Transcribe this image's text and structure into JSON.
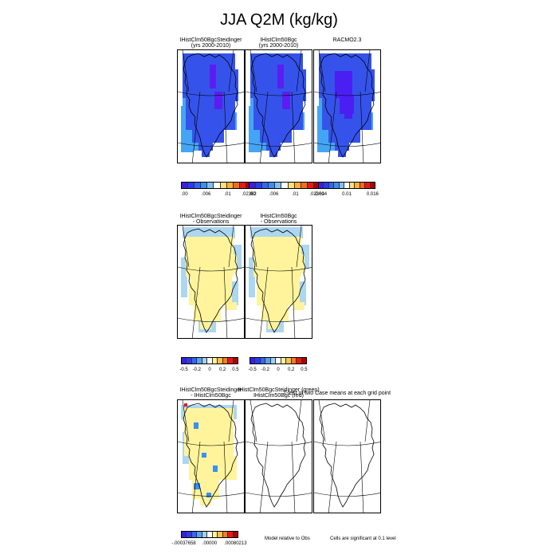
{
  "title": "JJA Q2M (kg/kg)",
  "rows": [
    {
      "panels": [
        {
          "title1": "IHistClm50BgcSteidinger",
          "title2": "(yrs 2000-2010)",
          "fill": "abs",
          "core": "#5a1ff0"
        },
        {
          "title1": "IHistClm50Bgc",
          "title2": "(yrs 2000-2010)",
          "fill": "abs",
          "core": "#5a1ff0"
        },
        {
          "title1": "RACMO2.3",
          "title2": "",
          "fill": "abs",
          "core": "#5a1ff0"
        }
      ],
      "colorbars": [
        {
          "labels": [
            ".00",
            ".006",
            ".01",
            ".02362"
          ]
        },
        {
          "labels": [
            ".00",
            ".006",
            ".01",
            ".02361"
          ]
        },
        {
          "labels": [
            "0.004",
            "0.01",
            "0.016"
          ]
        }
      ]
    },
    {
      "panels": [
        {
          "title1": "IHistClm50BgcSteidinger",
          "title2": "- Observations",
          "fill": "diff"
        },
        {
          "title1": "IHistClm50Bgc",
          "title2": "- Observations",
          "fill": "diff"
        }
      ],
      "colorbars": [
        {
          "labels": [
            "-0.5",
            "-0.2",
            "0",
            "0.2",
            "0.5"
          ]
        },
        {
          "labels": [
            "-0.5",
            "-0.2",
            "0",
            "0.2",
            "0.5"
          ]
        }
      ]
    },
    {
      "panels": [
        {
          "title1": "IHistClm50BgcSteidinger",
          "title2": "- IHistClm50Bgc",
          "fill": "diff2"
        },
        {
          "title1": "IHistClm50BgcSteidinger (green)",
          "title2": "IHistClm50Bgc (red)",
          "fill": "none"
        },
        {
          "title1": "",
          "title2": "",
          "fill": "none"
        }
      ],
      "overlay_title": "T-test of two Case means at each grid point",
      "colorbars": [
        {
          "labels": [
            "-.00037658",
            ".00000",
            ".00080213"
          ]
        }
      ],
      "footnotes": [
        "Model relative to Obs",
        "Cells are significant at 0.1 level"
      ]
    }
  ],
  "palettes": {
    "abs": [
      "#3a1ee8",
      "#2a3cf0",
      "#3566f5",
      "#3c8ef2",
      "#7fc0f2",
      "#ffffff",
      "#ffe07a",
      "#ffb03a",
      "#ff6a1a",
      "#e81818",
      "#b00000"
    ],
    "racmo": [
      "#3a1ee8",
      "#2a3cf0",
      "#3566f5",
      "#3c8ef2",
      "#7fc0f2",
      "#ffffff",
      "#ffe07a",
      "#ffb03a",
      "#ff6a1a",
      "#e81818",
      "#b00000"
    ],
    "diff": [
      "#3a1ee8",
      "#2a3cf0",
      "#3566f5",
      "#5aa0f2",
      "#9ed2f2",
      "#ffffff",
      "#fff29a",
      "#ffc24a",
      "#ff7a1a",
      "#e81818",
      "#b00000"
    ]
  },
  "colors": {
    "blue_fill": "#3553ea",
    "light_blue_fill": "#45a5f5",
    "yellow_fill": "#fff49c",
    "pale_blue_fill": "#add6f0"
  }
}
